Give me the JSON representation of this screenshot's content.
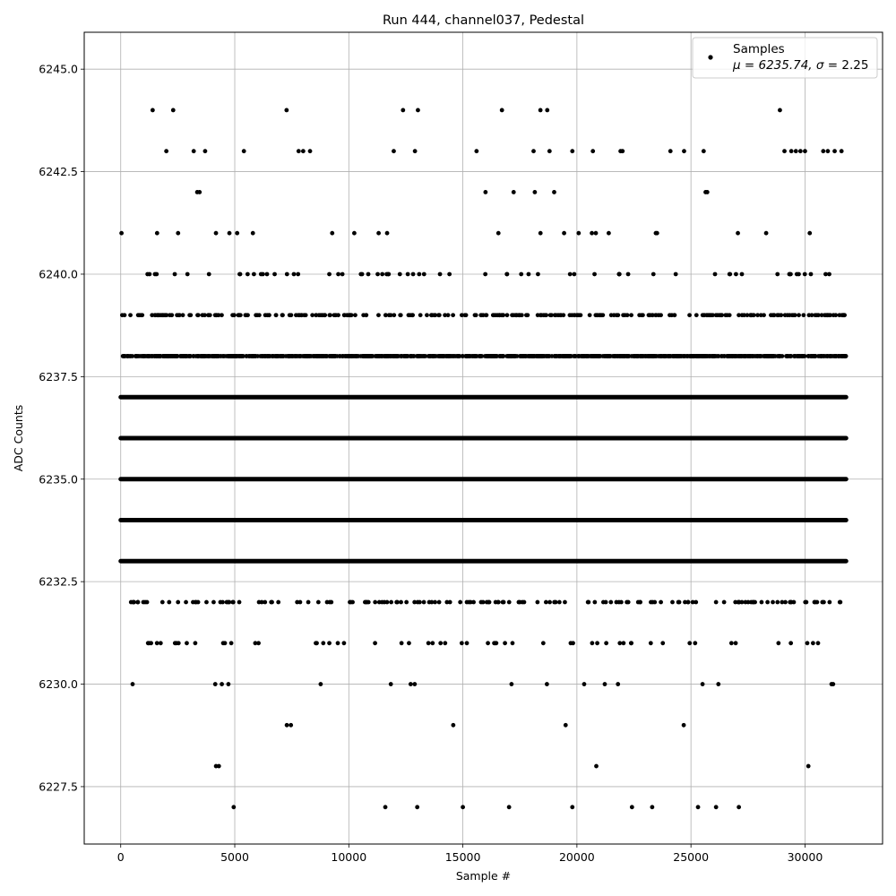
{
  "chart_data": {
    "type": "scatter",
    "title": "Run 444, channel037, Pedestal",
    "xlabel": "Sample #",
    "ylabel": "ADC Counts",
    "xlim": [
      -1600,
      33400
    ],
    "ylim": [
      6226.1,
      6245.9
    ],
    "x_ticks": [
      0,
      5000,
      10000,
      15000,
      20000,
      25000,
      30000
    ],
    "y_ticks": [
      6227.5,
      6230.0,
      6232.5,
      6235.0,
      6237.5,
      6240.0,
      6242.5,
      6245.0
    ],
    "x_tick_labels": [
      "0",
      "5000",
      "10000",
      "15000",
      "20000",
      "25000",
      "30000"
    ],
    "y_tick_labels": [
      "6227.5",
      "6230.0",
      "6232.5",
      "6235.0",
      "6237.5",
      "6240.0",
      "6242.5",
      "6245.0"
    ],
    "grid": true,
    "legend_position": "top-right",
    "marker_color": "#000000",
    "sample_count": 31800,
    "series": [
      {
        "name": "Samples",
        "label_line2_prefix": "μ = 6235.74, ",
        "label_line2_sigma": "σ",
        "label_line2_suffix": " = 2.25",
        "level_density": [
          {
            "y": 6227,
            "density": 0.0004
          },
          {
            "y": 6228,
            "density": 0.0012
          },
          {
            "y": 6229,
            "density": 0.0028
          },
          {
            "y": 6230,
            "density": 0.009
          },
          {
            "y": 6231,
            "density": 0.03
          },
          {
            "y": 6232,
            "density": 0.08
          },
          {
            "y": 6233,
            "density": 1
          },
          {
            "y": 6234,
            "density": 1
          },
          {
            "y": 6235,
            "density": 1
          },
          {
            "y": 6236,
            "density": 1
          },
          {
            "y": 6237,
            "density": 1
          },
          {
            "y": 6238,
            "density": 0.6
          },
          {
            "y": 6239,
            "density": 0.15
          },
          {
            "y": 6240,
            "density": 0.035
          },
          {
            "y": 6241,
            "density": 0.012
          },
          {
            "y": 6242,
            "density": 0.004
          },
          {
            "y": 6243,
            "density": 0.0012
          },
          {
            "y": 6244,
            "density": 0.0003
          }
        ],
        "sparse_points": [
          {
            "x": 11600,
            "y": 6227
          },
          {
            "x": 13000,
            "y": 6227
          },
          {
            "x": 15000,
            "y": 6227
          },
          {
            "x": 19800,
            "y": 6227
          },
          {
            "x": 23300,
            "y": 6227
          },
          {
            "x": 26100,
            "y": 6227
          },
          {
            "x": 27100,
            "y": 6227
          },
          {
            "x": 1400,
            "y": 6244
          },
          {
            "x": 2300,
            "y": 6244
          },
          {
            "x": 18400,
            "y": 6244
          },
          {
            "x": 18700,
            "y": 6244
          },
          {
            "x": 28900,
            "y": 6244
          },
          {
            "x": 2000,
            "y": 6243
          },
          {
            "x": 3200,
            "y": 6243
          },
          {
            "x": 3700,
            "y": 6243
          },
          {
            "x": 5400,
            "y": 6243
          },
          {
            "x": 7800,
            "y": 6243
          },
          {
            "x": 8000,
            "y": 6243
          },
          {
            "x": 8300,
            "y": 6243
          },
          {
            "x": 12900,
            "y": 6243
          },
          {
            "x": 15600,
            "y": 6243
          },
          {
            "x": 18100,
            "y": 6243
          },
          {
            "x": 18800,
            "y": 6243
          },
          {
            "x": 19800,
            "y": 6243
          },
          {
            "x": 20700,
            "y": 6243
          },
          {
            "x": 22000,
            "y": 6243
          },
          {
            "x": 24100,
            "y": 6243
          },
          {
            "x": 29100,
            "y": 6243
          },
          {
            "x": 29400,
            "y": 6243
          },
          {
            "x": 29600,
            "y": 6243
          },
          {
            "x": 29800,
            "y": 6243
          },
          {
            "x": 30000,
            "y": 6243
          },
          {
            "x": 30800,
            "y": 6243
          },
          {
            "x": 31000,
            "y": 6243
          },
          {
            "x": 31300,
            "y": 6243
          },
          {
            "x": 31600,
            "y": 6243
          }
        ]
      }
    ]
  }
}
